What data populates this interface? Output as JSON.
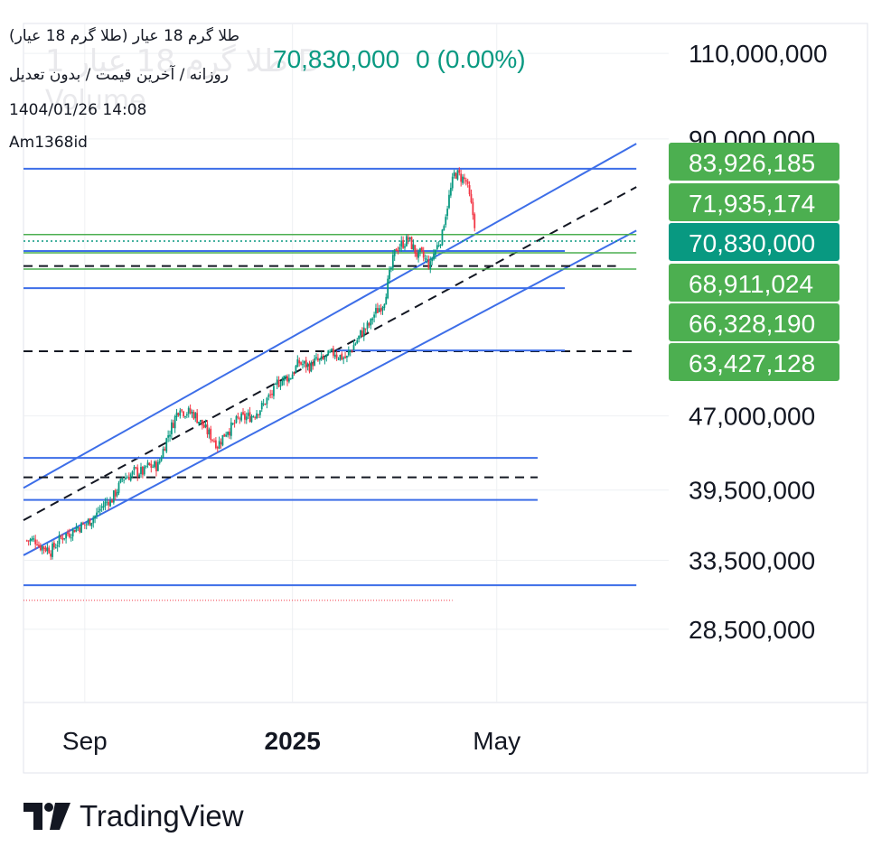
{
  "header": {
    "title": "(طلا گرم 18 عیار (طلا گرم 18 عیار",
    "subtitle": "روزانه / آخرین قیمت / بدون تعدیل",
    "datetime": "1404/01/26 14:08",
    "author": "Am1368id",
    "last_price": "70,830,000",
    "change": "0 (0.00%)"
  },
  "watermark": {
    "symbol": "1 طلا گرم 18 عیار D",
    "volume": "Volume"
  },
  "branding": {
    "name": "TradingView"
  },
  "colors": {
    "up": "#089981",
    "down": "#f23645",
    "channel": "#3d6ee8",
    "level_green": "#4caf50",
    "label_green": "#4caf50",
    "label_last": "#089981",
    "dashed": "#131722",
    "grid": "#eef0f3"
  },
  "chart_data": {
    "type": "candlestick",
    "x_axis": {
      "ticks": [
        {
          "label": "Sep",
          "date": "2024-09-01"
        },
        {
          "label": "2025",
          "date": "2025-01-01"
        },
        {
          "label": "May",
          "date": "2025-05-01"
        }
      ],
      "range": [
        "2024-07-27",
        "2025-08-10"
      ]
    },
    "y_axis": {
      "scale": "log",
      "range": [
        24000000,
        118000000
      ],
      "ticks": [
        {
          "label": "110,000,000",
          "value": 110000000
        },
        {
          "label": "90,000,000",
          "value": 90000000
        },
        {
          "label": "47,000,000",
          "value": 47000000
        },
        {
          "label": "39,500,000",
          "value": 39500000
        },
        {
          "label": "33,500,000",
          "value": 33500000
        },
        {
          "label": "28,500,000",
          "value": 28500000
        }
      ]
    },
    "grid": true,
    "price_labels": [
      {
        "label": "83,926,185",
        "value": 83926185,
        "kind": "level"
      },
      {
        "label": "71,935,174",
        "value": 71935174,
        "kind": "level"
      },
      {
        "label": "70,830,000",
        "value": 70830000,
        "kind": "last"
      },
      {
        "label": "68,911,024",
        "value": 68911024,
        "kind": "level"
      },
      {
        "label": "66,328,190",
        "value": 66328190,
        "kind": "level"
      },
      {
        "label": "63,427,128",
        "value": 63427128,
        "kind": "level"
      }
    ],
    "closes_by_week": [
      {
        "date": "2024-07-29",
        "close": 35100000
      },
      {
        "date": "2024-08-05",
        "close": 34400000
      },
      {
        "date": "2024-08-12",
        "close": 35300000
      },
      {
        "date": "2024-08-19",
        "close": 35900000
      },
      {
        "date": "2024-08-26",
        "close": 36400000
      },
      {
        "date": "2024-09-02",
        "close": 37300000
      },
      {
        "date": "2024-09-09",
        "close": 38600000
      },
      {
        "date": "2024-09-16",
        "close": 40100000
      },
      {
        "date": "2024-09-23",
        "close": 41000000
      },
      {
        "date": "2024-09-30",
        "close": 41200000
      },
      {
        "date": "2024-10-07",
        "close": 41800000
      },
      {
        "date": "2024-10-14",
        "close": 45000000
      },
      {
        "date": "2024-10-21",
        "close": 48200000
      },
      {
        "date": "2024-10-28",
        "close": 47300000
      },
      {
        "date": "2024-11-04",
        "close": 45800000
      },
      {
        "date": "2024-11-11",
        "close": 44200000
      },
      {
        "date": "2024-11-18",
        "close": 45600000
      },
      {
        "date": "2024-11-25",
        "close": 46800000
      },
      {
        "date": "2024-12-02",
        "close": 47000000
      },
      {
        "date": "2024-12-09",
        "close": 48200000
      },
      {
        "date": "2024-12-16",
        "close": 50000000
      },
      {
        "date": "2024-12-23",
        "close": 51500000
      },
      {
        "date": "2024-12-30",
        "close": 53300000
      },
      {
        "date": "2025-01-06",
        "close": 52800000
      },
      {
        "date": "2025-01-13",
        "close": 53500000
      },
      {
        "date": "2025-01-20",
        "close": 54600000
      },
      {
        "date": "2025-01-27",
        "close": 53800000
      },
      {
        "date": "2025-02-03",
        "close": 56500000
      },
      {
        "date": "2025-02-10",
        "close": 58400000
      },
      {
        "date": "2025-02-17",
        "close": 61200000
      },
      {
        "date": "2025-02-24",
        "close": 68800000
      },
      {
        "date": "2025-03-03",
        "close": 70900000
      },
      {
        "date": "2025-03-10",
        "close": 68200000
      },
      {
        "date": "2025-03-17",
        "close": 66800000
      },
      {
        "date": "2025-03-24",
        "close": 71800000
      },
      {
        "date": "2025-03-31",
        "close": 82800000
      },
      {
        "date": "2025-04-07",
        "close": 81500000
      },
      {
        "date": "2025-04-14",
        "close": 70830000
      }
    ],
    "drawings": [
      {
        "type": "channel_upper",
        "from": {
          "date": "2024-07-27",
          "value": 39700000
        },
        "to": {
          "date": "2025-07-22",
          "value": 89000000
        }
      },
      {
        "type": "channel_mid_dashed",
        "from": {
          "date": "2024-07-27",
          "value": 36800000
        },
        "to": {
          "date": "2025-07-22",
          "value": 80400000
        }
      },
      {
        "type": "channel_lower",
        "from": {
          "date": "2024-07-27",
          "value": 33900000
        },
        "to": {
          "date": "2025-07-22",
          "value": 72600000
        }
      },
      {
        "type": "hline_blue",
        "value": 83926185,
        "from": "2024-07-27",
        "to": "2025-07-22"
      },
      {
        "type": "hline_green",
        "value": 71935174,
        "from": "2024-07-27",
        "to": "2025-07-22"
      },
      {
        "type": "hline_dotted_last",
        "value": 70830000,
        "from": "2024-07-27",
        "to": "2025-07-22"
      },
      {
        "type": "hline_blue",
        "value": 69200000,
        "from": "2024-07-27",
        "to": "2025-06-10"
      },
      {
        "type": "hline_green",
        "value": 68911024,
        "from": "2024-07-27",
        "to": "2025-07-22"
      },
      {
        "type": "hline_dashed",
        "value": 66800000,
        "from": "2024-07-27",
        "to": "2025-07-10"
      },
      {
        "type": "hline_green",
        "value": 66328190,
        "from": "2024-07-27",
        "to": "2025-07-22"
      },
      {
        "type": "hline_blue",
        "value": 63427128,
        "from": "2024-07-27",
        "to": "2025-06-10"
      },
      {
        "type": "hline_dashed",
        "value": 54700000,
        "from": "2024-07-27",
        "to": "2025-07-22"
      },
      {
        "type": "hline_blue",
        "value": 54800000,
        "from": "2025-01-27",
        "to": "2025-06-10"
      },
      {
        "type": "hline_blue",
        "value": 42600000,
        "from": "2024-07-27",
        "to": "2025-05-25"
      },
      {
        "type": "hline_dashed",
        "value": 40700000,
        "from": "2024-07-27",
        "to": "2025-05-25"
      },
      {
        "type": "hline_blue",
        "value": 38600000,
        "from": "2024-07-27",
        "to": "2025-05-25"
      },
      {
        "type": "hline_blue",
        "value": 31600000,
        "from": "2024-07-27",
        "to": "2025-07-22"
      },
      {
        "type": "hline_red_dotted",
        "value": 30500000,
        "from": "2024-07-27",
        "to": "2025-04-05"
      }
    ]
  }
}
